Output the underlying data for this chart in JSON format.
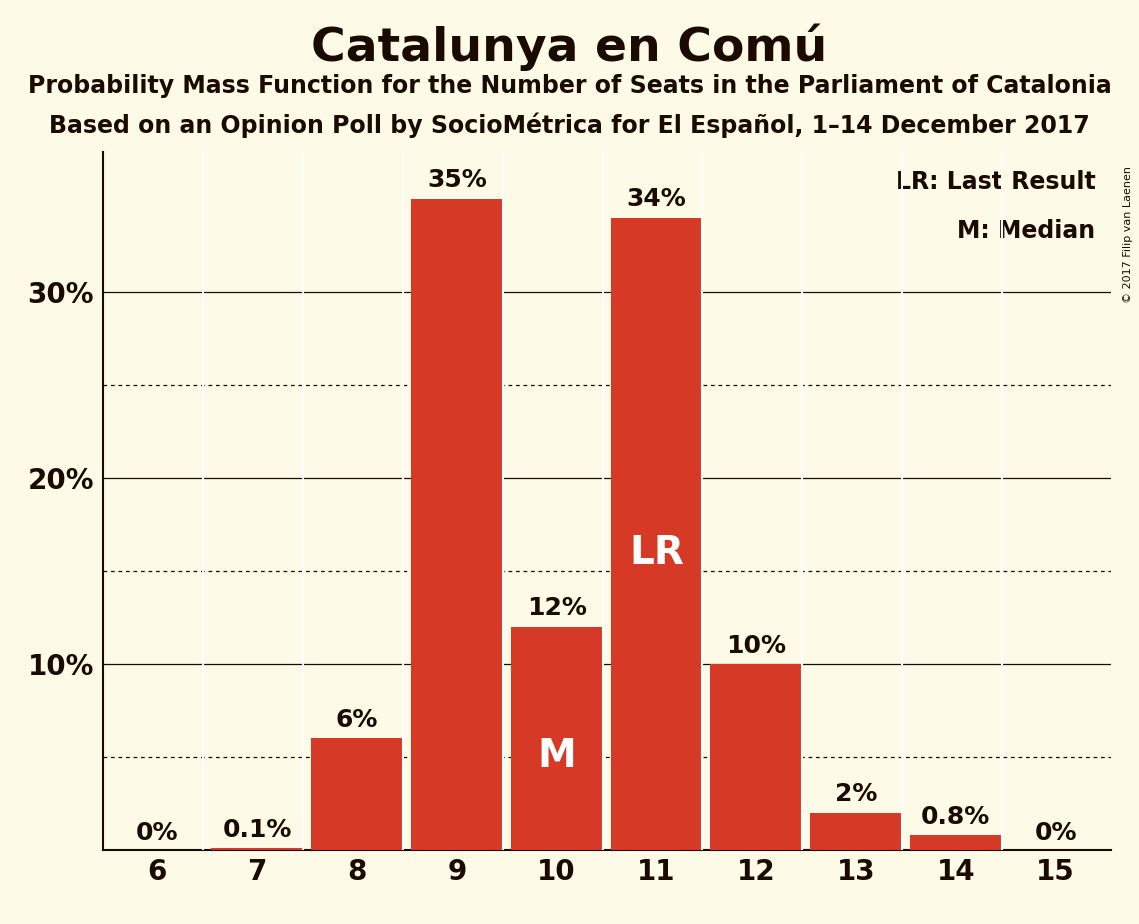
{
  "title": "Catalunya en Comú",
  "subtitle1": "Probability Mass Function for the Number of Seats in the Parliament of Catalonia",
  "subtitle2": "Based on an Opinion Poll by SocioMétrica for El Español, 1–14 December 2017",
  "copyright": "© 2017 Filip van Laenen",
  "categories": [
    6,
    7,
    8,
    9,
    10,
    11,
    12,
    13,
    14,
    15
  ],
  "values": [
    0.0,
    0.1,
    6.0,
    35.0,
    12.0,
    34.0,
    10.0,
    2.0,
    0.8,
    0.0
  ],
  "value_labels": [
    "0%",
    "0.1%",
    "6%",
    "35%",
    "12%",
    "34%",
    "10%",
    "2%",
    "0.8%",
    "0%"
  ],
  "bar_color": "#d63a27",
  "background_color": "#fefae8",
  "text_color": "#1a0a00",
  "grid_solid": [
    10,
    20,
    30
  ],
  "grid_dotted": [
    5,
    15,
    25
  ],
  "ylim": [
    0,
    37.5
  ],
  "yticks": [
    10,
    20,
    30
  ],
  "ytick_labels": [
    "10%",
    "20%",
    "30%"
  ],
  "legend_lr_label": "LR: Last Result",
  "legend_m_label": "M: Median",
  "lr_bar": 11,
  "median_bar": 10,
  "text_color_dark": "#1a0a00",
  "text_color_white": "#ffffff",
  "white_inner_label_bars": [
    10,
    11
  ],
  "title_fontsize": 34,
  "subtitle_fontsize": 17,
  "axis_tick_fontsize": 20,
  "bar_label_fontsize": 18,
  "bar_inner_label_fontsize": 28,
  "legend_fontsize": 17,
  "copyright_fontsize": 8
}
